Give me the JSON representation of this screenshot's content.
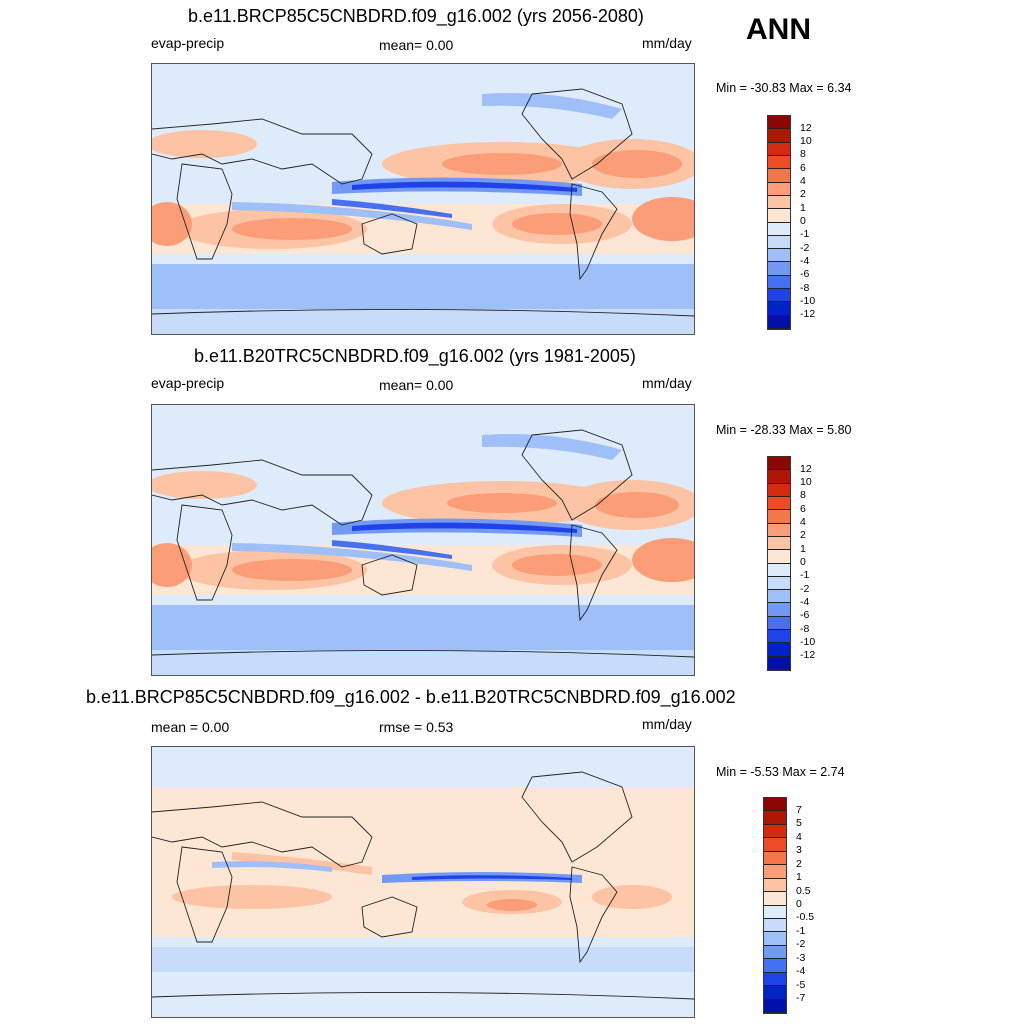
{
  "season": "ANN",
  "units": "mm/day",
  "colors": {
    "full": [
      "#00007f",
      "#0010a8",
      "#0023c8",
      "#1f43e8",
      "#4670f0",
      "#7299f4",
      "#9ebff7",
      "#c6dcfa",
      "#deebfb",
      "#fde6d4",
      "#fcc4a4",
      "#fb9d77",
      "#f6764c",
      "#ee4c26",
      "#d32a10",
      "#ae1606",
      "#8c0703"
    ],
    "diff": [
      "#00007f",
      "#0010a8",
      "#0023c8",
      "#1f43e8",
      "#4670f0",
      "#7299f4",
      "#9ebff7",
      "#c6dcfa",
      "#deebfb",
      "#fde6d4",
      "#fcc4a4",
      "#fb9d77",
      "#f6764c",
      "#ee4c26",
      "#d32a10",
      "#ae1606",
      "#8c0703"
    ]
  },
  "panels": [
    {
      "title": "b.e11.BRCP85C5CNBDRD.f09_g16.002 (yrs 2056-2080)",
      "left_label": "evap-precip",
      "center_label": "mean=   0.00",
      "right_label": "mm/day",
      "minmax": "Min = -30.83 Max =   6.34"
    },
    {
      "title": "b.e11.B20TRC5CNBDRD.f09_g16.002 (yrs 1981-2005)",
      "left_label": "evap-precip",
      "center_label": "mean=   0.00",
      "right_label": "mm/day",
      "minmax": "Min = -28.33 Max =   5.80"
    },
    {
      "title": "b.e11.BRCP85C5CNBDRD.f09_g16.002 - b.e11.B20TRC5CNBDRD.f09_g16.002",
      "left_label": "mean =   0.00",
      "center_label": "rmse =   0.53",
      "right_label": "mm/day",
      "minmax": "Min =  -5.53 Max =   2.74"
    }
  ],
  "chart_data": [
    {
      "type": "heatmap",
      "title": "b.e11.BRCP85C5CNBDRD.f09_g16.002 (yrs 2056-2080)",
      "variable": "evap-precip",
      "units": "mm/day",
      "mean": 0.0,
      "min": -30.83,
      "max": 6.34,
      "colorbar_levels": [
        "12",
        "10",
        "8",
        "6",
        "4",
        "2",
        "1",
        "0",
        "-1",
        "-2",
        "-4",
        "-6",
        "-8",
        "-10",
        "-12"
      ]
    },
    {
      "type": "heatmap",
      "title": "b.e11.B20TRC5CNBDRD.f09_g16.002 (yrs 1981-2005)",
      "variable": "evap-precip",
      "units": "mm/day",
      "mean": 0.0,
      "min": -28.33,
      "max": 5.8,
      "colorbar_levels": [
        "12",
        "10",
        "8",
        "6",
        "4",
        "2",
        "1",
        "0",
        "-1",
        "-2",
        "-4",
        "-6",
        "-8",
        "-10",
        "-12"
      ]
    },
    {
      "type": "heatmap",
      "title": "b.e11.BRCP85C5CNBDRD.f09_g16.002 - b.e11.B20TRC5CNBDRD.f09_g16.002",
      "units": "mm/day",
      "mean": 0.0,
      "rmse": 0.53,
      "min": -5.53,
      "max": 2.74,
      "colorbar_levels": [
        "7",
        "5",
        "4",
        "3",
        "2",
        "1",
        "0.5",
        "0",
        "-0.5",
        "-1",
        "-2",
        "-3",
        "-4",
        "-5",
        "-7"
      ]
    }
  ]
}
